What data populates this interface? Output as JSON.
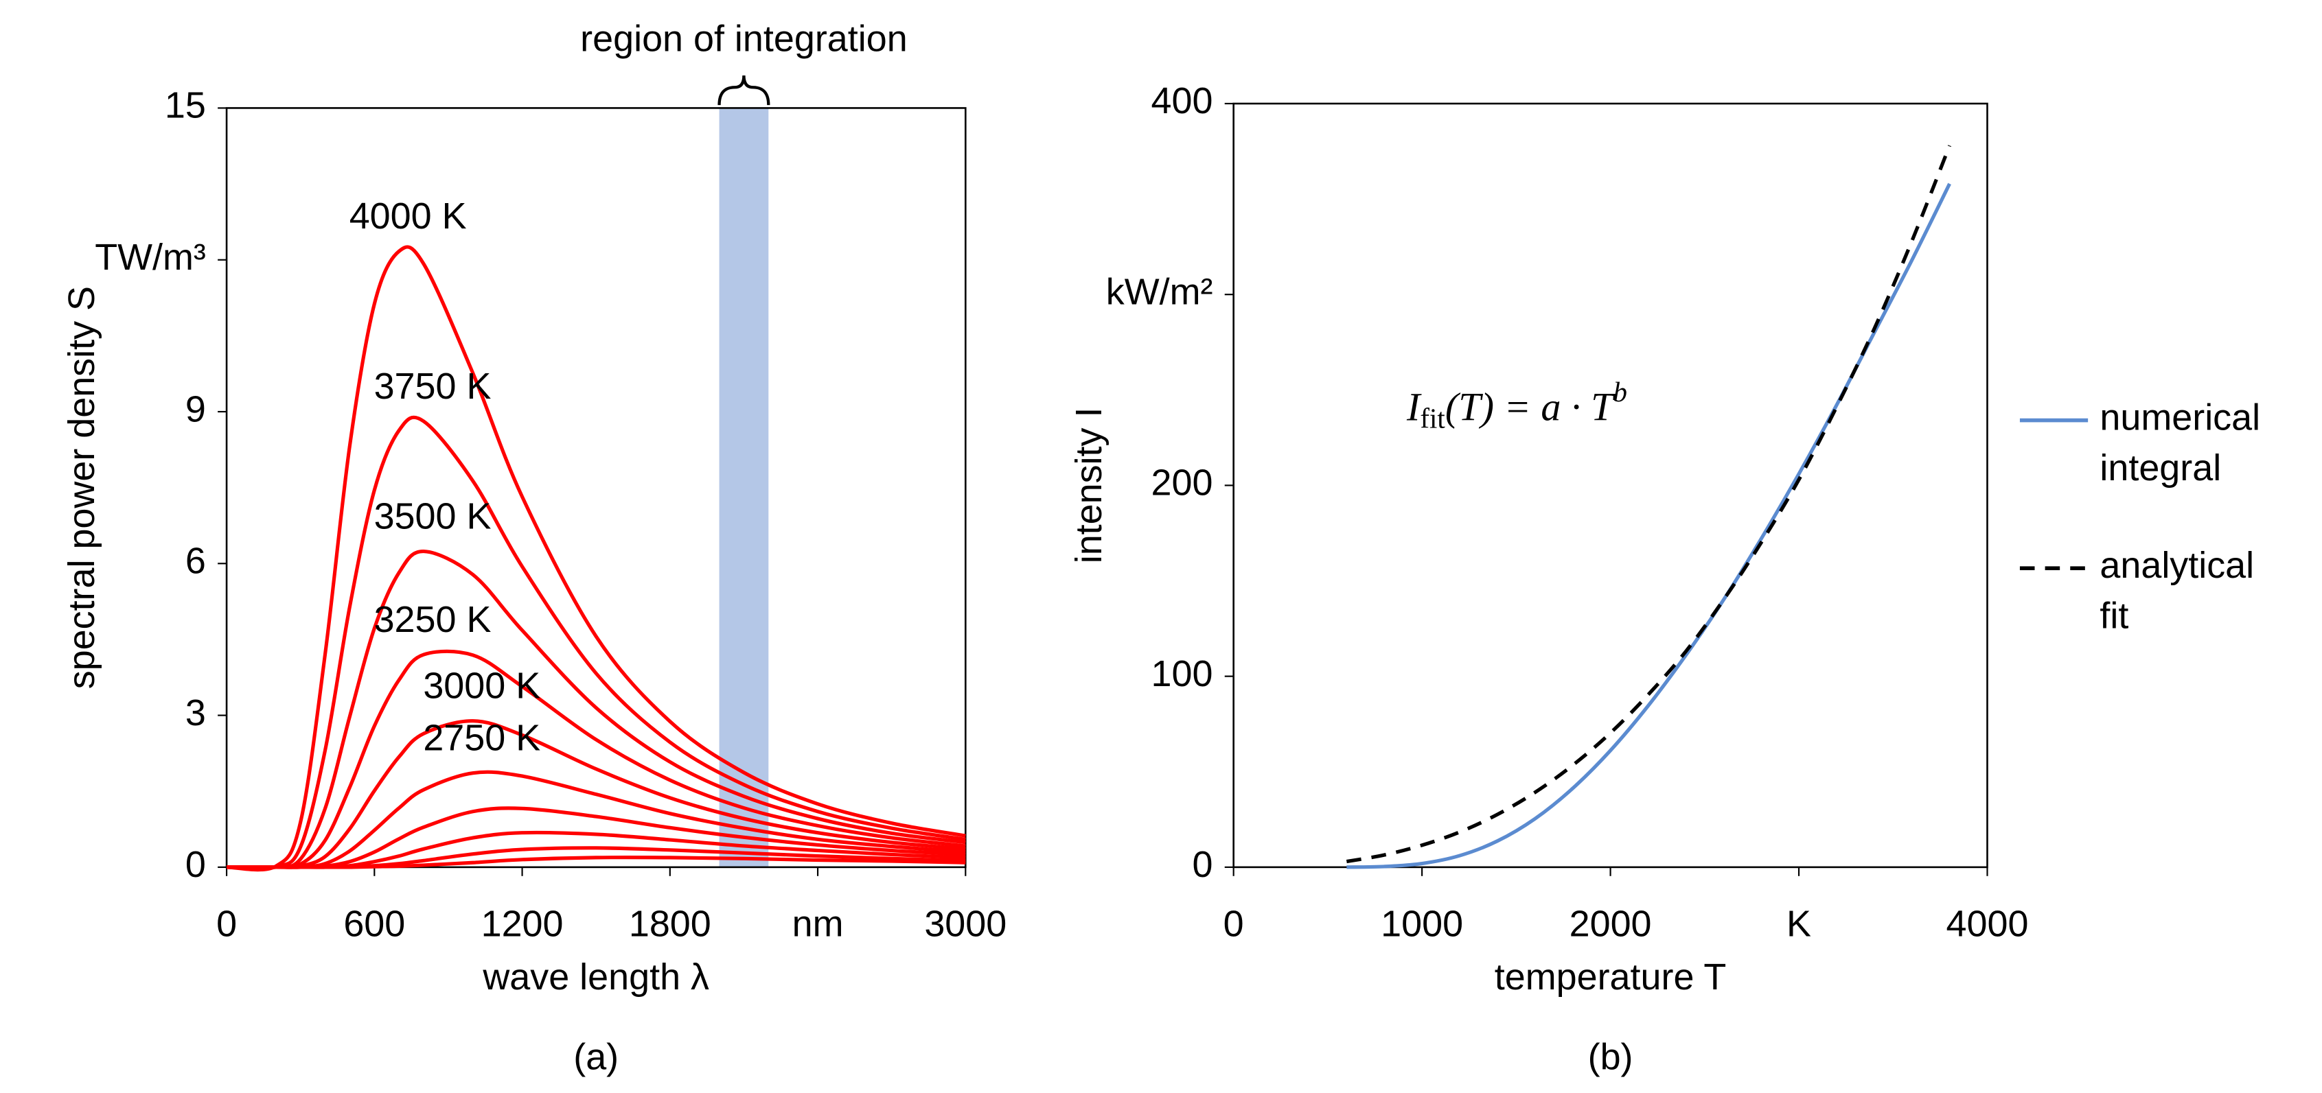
{
  "chart_data": [
    {
      "type": "line",
      "caption": "(a)",
      "x_label": "wave length λ",
      "y_label": "spectral power density S",
      "xlim": [
        0,
        3000
      ],
      "ylim": [
        0,
        15
      ],
      "xticks": [
        0,
        600,
        1200,
        1800,
        {
          "value": 2400,
          "label": "nm"
        },
        3000
      ],
      "yticks": [
        0,
        3,
        6,
        9,
        {
          "value": 12,
          "label": "TW/m³"
        },
        15
      ],
      "shaded_region": {
        "label": "region of integration",
        "xlim": [
          2000,
          2200
        ],
        "color": "#b4c7e7"
      },
      "x": [
        0,
        200,
        300,
        400,
        500,
        600,
        700,
        800,
        1000,
        1200,
        1500,
        1800,
        2100,
        2400,
        2700,
        3000
      ],
      "series": [
        {
          "name": "4000 K",
          "color": "#ff0000",
          "values": [
            0,
            0.02,
            0.89,
            4.21,
            8.33,
            11.13,
            12.17,
            11.92,
            9.76,
            7.32,
            4.56,
            2.88,
            1.87,
            1.25,
            0.87,
            0.62
          ]
        },
        {
          "name": "3750 K",
          "color": "#ff0000",
          "values": [
            0,
            0.01,
            0.4,
            2.31,
            5.15,
            7.45,
            8.63,
            8.81,
            7.63,
            5.94,
            3.83,
            2.47,
            1.63,
            1.1,
            0.77,
            0.55
          ]
        },
        {
          "name": "3500 K",
          "color": "#ff0000",
          "values": [
            0,
            0,
            0.16,
            1.16,
            2.98,
            4.72,
            5.82,
            6.24,
            5.78,
            4.68,
            3.15,
            2.08,
            1.4,
            0.96,
            0.67,
            0.49
          ]
        },
        {
          "name": "3250 K",
          "color": "#ff0000",
          "values": [
            0,
            0,
            0.06,
            0.53,
            1.58,
            2.79,
            3.7,
            4.2,
            4.19,
            3.57,
            2.52,
            1.72,
            1.17,
            0.82,
            0.58,
            0.42
          ]
        },
        {
          "name": "3000 K",
          "color": "#ff0000",
          "values": [
            0,
            0,
            0.02,
            0.21,
            0.76,
            1.51,
            2.18,
            2.64,
            2.89,
            2.61,
            1.94,
            1.37,
            0.96,
            0.68,
            0.49,
            0.36
          ]
        },
        {
          "name": "2750 K",
          "color": "#ff0000",
          "values": [
            0,
            0,
            0,
            0.07,
            0.32,
            0.73,
            1.17,
            1.53,
            1.86,
            1.8,
            1.44,
            1.06,
            0.77,
            0.55,
            0.41,
            0.3
          ]
        },
        {
          "color": "#ff0000",
          "values": [
            0,
            0,
            0,
            0.02,
            0.11,
            0.3,
            0.56,
            0.79,
            1.1,
            1.16,
            1.0,
            0.78,
            0.59,
            0.44,
            0.33,
            0.25
          ]
        },
        {
          "color": "#ff0000",
          "values": [
            0,
            0,
            0,
            0,
            0.03,
            0.11,
            0.22,
            0.36,
            0.58,
            0.68,
            0.65,
            0.54,
            0.42,
            0.33,
            0.25,
            0.19
          ]
        },
        {
          "color": "#ff0000",
          "values": [
            0,
            0,
            0,
            0,
            0.01,
            0.03,
            0.07,
            0.13,
            0.26,
            0.35,
            0.38,
            0.34,
            0.28,
            0.22,
            0.17,
            0.13
          ]
        },
        {
          "color": "#ff0000",
          "values": [
            0,
            0,
            0,
            0,
            0,
            0.01,
            0.02,
            0.04,
            0.09,
            0.15,
            0.19,
            0.19,
            0.17,
            0.14,
            0.12,
            0.09
          ]
        }
      ]
    },
    {
      "type": "line",
      "caption": "(b)",
      "x_label": "temperature T",
      "y_label": "intensity I",
      "xlim": [
        0,
        4000
      ],
      "ylim": [
        0,
        400
      ],
      "xticks": [
        0,
        1000,
        2000,
        {
          "value": 3000,
          "label": "K"
        },
        4000
      ],
      "yticks": [
        0,
        100,
        200,
        {
          "value": 300,
          "label": "kW/m²"
        },
        400
      ],
      "formula": {
        "base": "I",
        "sub": "fit",
        "mid": "(T) = a · T",
        "sup": "b"
      },
      "x": [
        600,
        800,
        1000,
        1200,
        1400,
        1600,
        1800,
        2000,
        2200,
        2400,
        2600,
        2800,
        3000,
        3200,
        3400,
        3600,
        3800
      ],
      "series": [
        {
          "name": "numerical integral",
          "color": "#5b8bd0",
          "dash": false,
          "values": [
            0.02,
            0.35,
            1.92,
            6.04,
            13.7,
            25.4,
            41.3,
            61.1,
            84.5,
            111,
            140,
            172,
            206,
            242,
            280,
            318,
            358
          ]
        },
        {
          "name": "analytical fit",
          "color": "#000000",
          "dash": true,
          "values": [
            3.0,
            6.4,
            11.5,
            18.4,
            27.6,
            39.2,
            53.4,
            70.3,
            90.3,
            113,
            140,
            170,
            203,
            241,
            282,
            328,
            378
          ]
        }
      ]
    }
  ]
}
